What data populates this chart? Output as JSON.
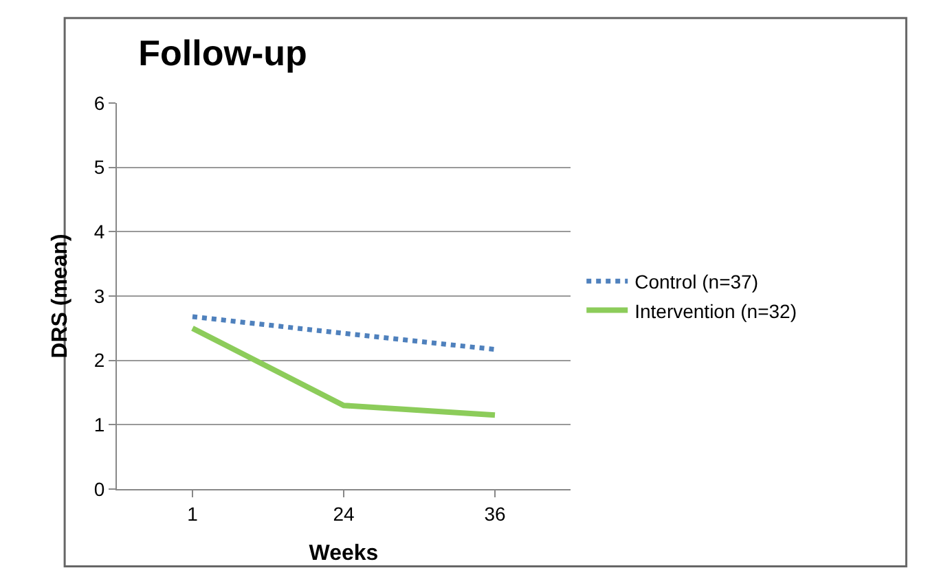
{
  "chart_data": {
    "type": "line",
    "title": "Follow-up",
    "xlabel": "Weeks",
    "ylabel": "DRS (mean)",
    "categories": [
      "1",
      "24",
      "36"
    ],
    "series": [
      {
        "name": "Control (n=37)",
        "color": "#4f81bd",
        "values": [
          2.68,
          2.42,
          2.17
        ],
        "line_style": "dotted"
      },
      {
        "name": "Intervention (n=32)",
        "color": "#8ccc5a",
        "values": [
          2.5,
          1.3,
          1.15
        ],
        "line_style": "solid"
      }
    ],
    "ylim": [
      0,
      6
    ],
    "yticks": [
      0,
      1,
      2,
      3,
      4,
      5,
      6
    ],
    "grid": "y",
    "legend": "right",
    "marker": "none"
  }
}
